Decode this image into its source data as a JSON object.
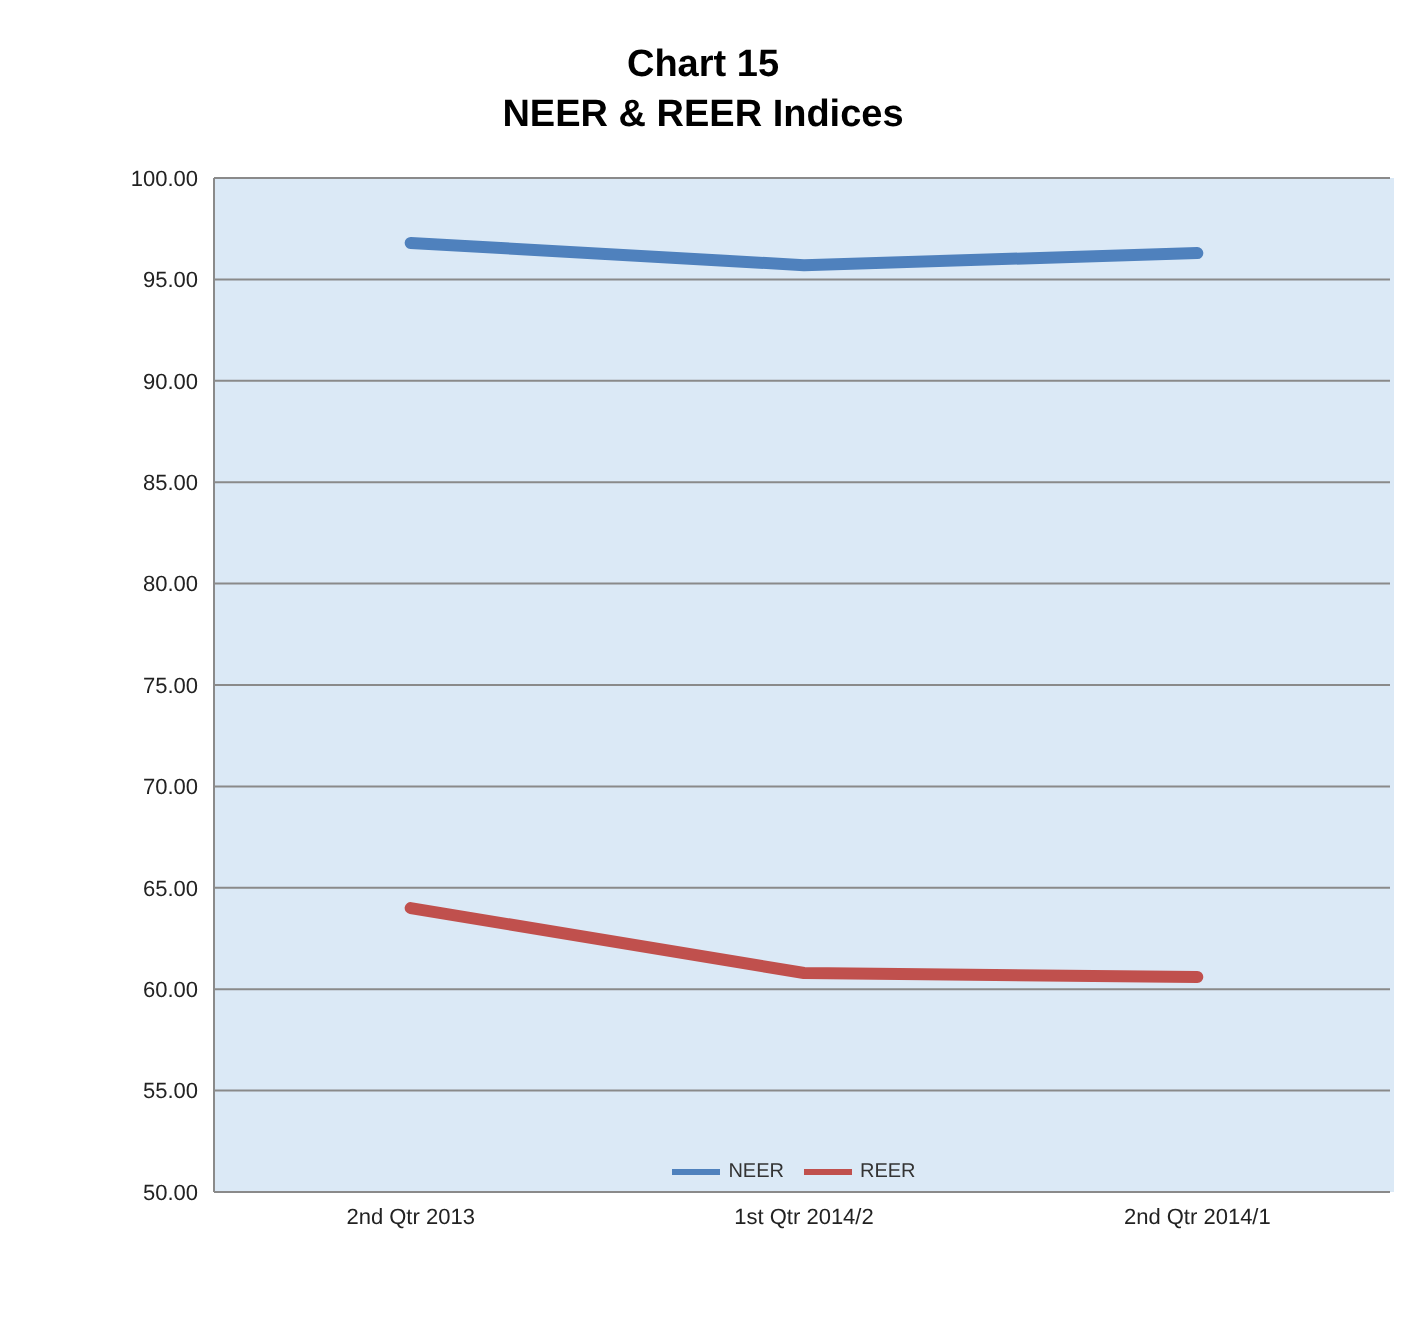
{
  "chart_data": {
    "type": "line",
    "title": "Chart 15\nNEER & REER Indices",
    "categories": [
      "2nd Qtr 2013",
      "1st Qtr 2014/2",
      "2nd Qtr 2014/1"
    ],
    "series": [
      {
        "name": "NEER",
        "color": "#4f81bd",
        "values": [
          96.8,
          95.7,
          96.3
        ]
      },
      {
        "name": "REER",
        "color": "#c0504d",
        "values": [
          64.0,
          60.8,
          60.6
        ]
      }
    ],
    "ylim": [
      50,
      100
    ],
    "yticks": [
      {
        "value": 50,
        "label": "50.00"
      },
      {
        "value": 55,
        "label": "55.00"
      },
      {
        "value": 60,
        "label": "60.00"
      },
      {
        "value": 65,
        "label": "65.00"
      },
      {
        "value": 70,
        "label": "70.00"
      },
      {
        "value": 75,
        "label": "75.00"
      },
      {
        "value": 80,
        "label": "80.00"
      },
      {
        "value": 85,
        "label": "85.00"
      },
      {
        "value": 90,
        "label": "90.00"
      },
      {
        "value": 95,
        "label": "95.00"
      },
      {
        "value": 100,
        "label": "100.00"
      }
    ],
    "grid": "y",
    "legend": "bottom",
    "marker": "none",
    "line_style": "solid"
  }
}
